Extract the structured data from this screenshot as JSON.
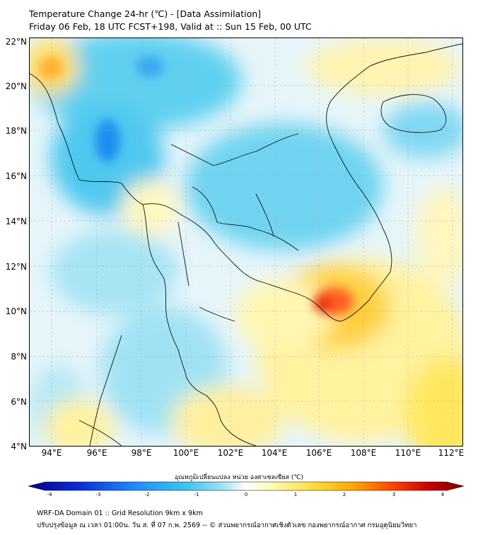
{
  "header": {
    "title_line1": "Temperature Change 24-hr (℃) - [Data Assimilation]",
    "title_line2": "Friday 06 Feb, 18 UTC FCST+198, Valid at :: Sun 15 Feb, 00 UTC"
  },
  "axes": {
    "lat_labels": [
      "22°N",
      "20°N",
      "18°N",
      "16°N",
      "14°N",
      "12°N",
      "10°N",
      "8°N",
      "6°N",
      "4°N"
    ],
    "lon_labels": [
      "94°E",
      "96°E",
      "98°E",
      "100°E",
      "102°E",
      "104°E",
      "106°E",
      "108°E",
      "110°E",
      "112°E"
    ],
    "lat_range": [
      4,
      22.2
    ],
    "lon_range": [
      93,
      112.2
    ],
    "grid": true
  },
  "colorbar": {
    "title": "อุณหภูมิเปลี่ยนแปลง หน่วย องศาเซลเซียส (℃)",
    "ticks": [
      "-4",
      "-3",
      "-2",
      "-1",
      "0",
      "1",
      "2",
      "3",
      "4"
    ],
    "range": [
      -4,
      4
    ],
    "colors": [
      "#00008b",
      "#0a2fd6",
      "#1e90ff",
      "#40c8f0",
      "#a8e4f4",
      "#ffffff",
      "#fffbb0",
      "#ffe040",
      "#ffa500",
      "#ff4000",
      "#c80000",
      "#7a0000"
    ]
  },
  "footer": {
    "line1": "WRF-DA Domain 01 :: Grid Resolution 9km x 9km",
    "line2": "ปรับปรุงข้อมูล ณ เวลา 01:00น. วัน ส. ที่ 07 ก.พ. 2569 -- © ส่วนพยากรณ์อากาศเชิงตัวเลข กองพยากรณ์อากาศ กรมอุตุนิยมวิทยา"
  }
}
